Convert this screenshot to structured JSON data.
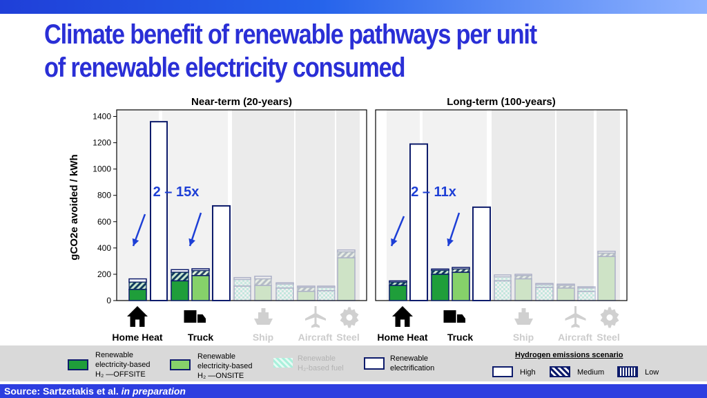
{
  "header": {
    "title_line1": "Climate benefit of renewable pathways per unit",
    "title_line2": "of renewable electricity consumed"
  },
  "colors": {
    "offsite": "#1f9e3a",
    "onsite": "#86d16a",
    "h2fuel": "#aaf0dc",
    "electrification": "#ffffff",
    "outline": "#0d1b6b",
    "annotation": "#1d3fd6",
    "faded_band": "#ebebeb"
  },
  "chart_data": [
    {
      "type": "bar",
      "title": "Near-term (20-years)",
      "ylabel": "gCO2e avoided / kWh",
      "ylim": [
        0,
        1450
      ],
      "yticks": [
        0,
        200,
        400,
        600,
        800,
        1000,
        1200,
        1400
      ],
      "categories": [
        "Home Heat",
        "Truck",
        "Ship",
        "Aircraft",
        "Steel"
      ],
      "faded_categories": [
        "Ship",
        "Aircraft",
        "Steel"
      ],
      "annotation": "2 – 15x",
      "bars": [
        {
          "category": "Home Heat",
          "pathway": "offsite",
          "low": 85,
          "medium": 140,
          "high": 165
        },
        {
          "category": "Home Heat",
          "pathway": "electrification",
          "high": 1360
        },
        {
          "category": "Truck",
          "pathway": "offsite",
          "low": 150,
          "medium": 215,
          "high": 235
        },
        {
          "category": "Truck",
          "pathway": "onsite",
          "low": 190,
          "medium": 228,
          "high": 242
        },
        {
          "category": "Truck",
          "pathway": "electrification",
          "high": 720
        },
        {
          "category": "Ship",
          "pathway": "h2fuel",
          "low": 110,
          "medium": 160,
          "high": 175
        },
        {
          "category": "Ship",
          "pathway": "onsite",
          "low": 115,
          "medium": 165,
          "high": 185
        },
        {
          "category": "Ship",
          "pathway": "h2fuel",
          "low": 95,
          "medium": 125,
          "high": 135
        },
        {
          "category": "Aircraft",
          "pathway": "onsite",
          "low": 70,
          "medium": 100,
          "high": 110
        },
        {
          "category": "Aircraft",
          "pathway": "h2fuel",
          "low": 75,
          "medium": 100,
          "high": 110
        },
        {
          "category": "Steel",
          "pathway": "onsite",
          "low": 325,
          "medium": 370,
          "high": 385
        }
      ]
    },
    {
      "type": "bar",
      "title": "Long-term (100-years)",
      "ylim": [
        0,
        1450
      ],
      "categories": [
        "Home Heat",
        "Truck",
        "Ship",
        "Aircraft",
        "Steel"
      ],
      "faded_categories": [
        "Ship",
        "Aircraft",
        "Steel"
      ],
      "annotation": "2 – 11x",
      "bars": [
        {
          "category": "Home Heat",
          "pathway": "offsite",
          "low": 115,
          "medium": 140,
          "high": 150
        },
        {
          "category": "Home Heat",
          "pathway": "electrification",
          "high": 1190
        },
        {
          "category": "Truck",
          "pathway": "offsite",
          "low": 200,
          "medium": 230,
          "high": 240
        },
        {
          "category": "Truck",
          "pathway": "onsite",
          "low": 215,
          "medium": 240,
          "high": 252
        },
        {
          "category": "Truck",
          "pathway": "electrification",
          "high": 710
        },
        {
          "category": "Ship",
          "pathway": "h2fuel",
          "low": 150,
          "medium": 180,
          "high": 195
        },
        {
          "category": "Ship",
          "pathway": "onsite",
          "low": 165,
          "medium": 190,
          "high": 200
        },
        {
          "category": "Ship",
          "pathway": "h2fuel",
          "low": 100,
          "medium": 120,
          "high": 130
        },
        {
          "category": "Aircraft",
          "pathway": "onsite",
          "low": 95,
          "medium": 115,
          "high": 125
        },
        {
          "category": "Aircraft",
          "pathway": "h2fuel",
          "low": 70,
          "medium": 95,
          "high": 105
        },
        {
          "category": "Steel",
          "pathway": "onsite",
          "low": 335,
          "medium": 360,
          "high": 375
        }
      ]
    }
  ],
  "legend": {
    "offsite": [
      "Renewable",
      "electricity-based",
      "H₂ —OFFSITE"
    ],
    "onsite": [
      "Renewable",
      "electricity-based",
      "H₂ —ONSITE"
    ],
    "h2fuel": [
      "Renewable",
      "H₂-based fuel"
    ],
    "electrification": [
      "Renewable",
      "electrification"
    ],
    "scenario_title": "Hydrogen emissions scenario",
    "scenario_high": "High",
    "scenario_medium": "Medium",
    "scenario_low": "Low"
  },
  "footer": {
    "source_label": "Source: Sartzetakis et al.",
    "source_italic": "in preparation"
  }
}
